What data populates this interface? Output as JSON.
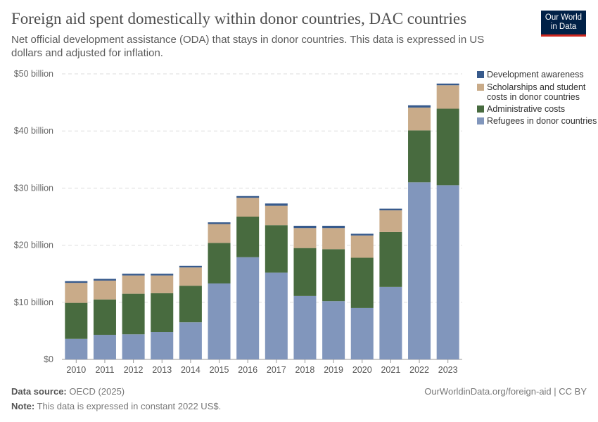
{
  "header": {
    "title": "Foreign aid spent domestically within donor countries, DAC countries",
    "subtitle": "Net official development assistance (ODA) that stays in donor countries. This data is expressed in US dollars and adjusted for inflation.",
    "logo": "Our World in Data"
  },
  "footer": {
    "source_label": "Data source:",
    "source": "OECD (2025)",
    "note_label": "Note:",
    "note": "This data is expressed in constant 2022 US$.",
    "url": "OurWorldinData.org/foreign-aid | CC BY"
  },
  "chart_data": {
    "type": "bar",
    "stacked": true,
    "categories": [
      "2010",
      "2011",
      "2012",
      "2013",
      "2014",
      "2015",
      "2016",
      "2017",
      "2018",
      "2019",
      "2020",
      "2021",
      "2022",
      "2023"
    ],
    "ylim": [
      0,
      50
    ],
    "yticks": [
      0,
      10,
      20,
      30,
      40,
      50
    ],
    "ytick_labels": [
      "$0",
      "$10 billion",
      "$20 billion",
      "$30 billion",
      "$40 billion",
      "$50 billion"
    ],
    "grid": true,
    "legend_position": "right",
    "series": [
      {
        "name": "Refugees in donor countries",
        "color": "#8196bc",
        "values": [
          3.6,
          4.3,
          4.4,
          4.8,
          6.5,
          13.3,
          17.9,
          15.2,
          11.1,
          10.2,
          9.0,
          12.7,
          31.0,
          30.5
        ]
      },
      {
        "name": "Administrative costs",
        "color": "#486b3f",
        "values": [
          6.3,
          6.2,
          7.1,
          6.8,
          6.4,
          7.1,
          7.1,
          8.3,
          8.4,
          9.1,
          8.8,
          9.6,
          9.1,
          13.4
        ]
      },
      {
        "name": "Scholarships and student costs in donor countries",
        "color": "#c9ab89",
        "values": [
          3.5,
          3.3,
          3.2,
          3.1,
          3.2,
          3.3,
          3.3,
          3.4,
          3.5,
          3.7,
          3.9,
          3.8,
          4.0,
          4.1
        ]
      },
      {
        "name": "Development awareness",
        "color": "#375a8c",
        "values": [
          0.3,
          0.3,
          0.3,
          0.3,
          0.3,
          0.3,
          0.3,
          0.4,
          0.4,
          0.4,
          0.3,
          0.3,
          0.4,
          0.3
        ]
      }
    ]
  }
}
